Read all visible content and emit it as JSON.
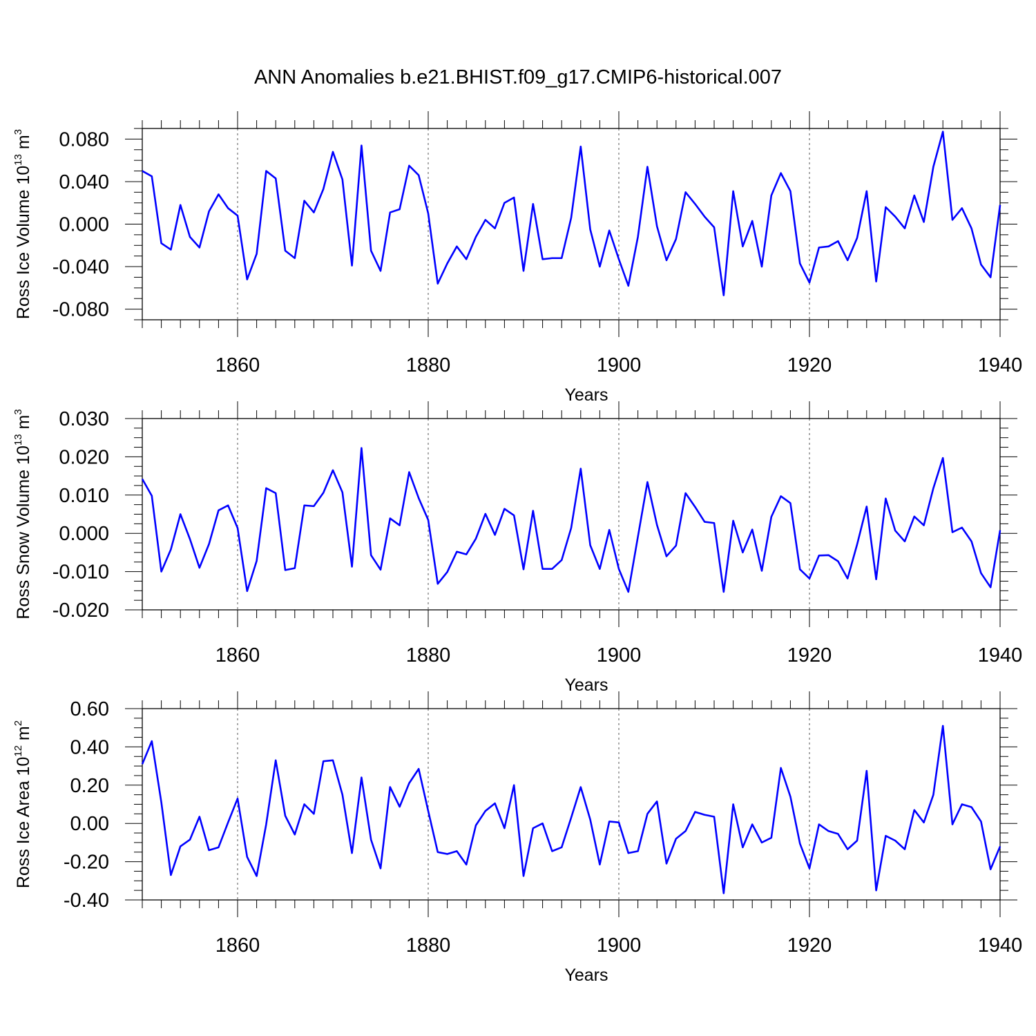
{
  "title": "ANN Anomalies b.e21.BHIST.f09_g17.CMIP6-historical.007",
  "line_color": "#0000ff",
  "chart_data": [
    {
      "type": "line",
      "title": "",
      "xlabel": "Years",
      "ylabel": {
        "text": "Ross Ice Volume 10",
        "exp": "13",
        "unit": " m",
        "unit_exp": "3"
      },
      "xlim": [
        1850,
        1940
      ],
      "ylim": [
        -0.09,
        0.09
      ],
      "x_ticks": [
        1860,
        1880,
        1900,
        1920,
        1940
      ],
      "y_ticks": [
        -0.08,
        -0.04,
        0.0,
        0.04,
        0.08
      ],
      "y_tick_labels": [
        "-0.080",
        "-0.040",
        "0.000",
        "0.040",
        "0.080"
      ],
      "grid": "vertical-dashed",
      "x": [
        1850,
        1851,
        1852,
        1853,
        1854,
        1855,
        1856,
        1857,
        1858,
        1859,
        1860,
        1861,
        1862,
        1863,
        1864,
        1865,
        1866,
        1867,
        1868,
        1869,
        1870,
        1871,
        1872,
        1873,
        1874,
        1875,
        1876,
        1877,
        1878,
        1879,
        1880,
        1881,
        1882,
        1883,
        1884,
        1885,
        1886,
        1887,
        1888,
        1889,
        1890,
        1891,
        1892,
        1893,
        1894,
        1895,
        1896,
        1897,
        1898,
        1899,
        1900,
        1901,
        1902,
        1903,
        1904,
        1905,
        1906,
        1907,
        1908,
        1909,
        1910,
        1911,
        1912,
        1913,
        1914,
        1915,
        1916,
        1917,
        1918,
        1919,
        1920,
        1921,
        1922,
        1923,
        1924,
        1925,
        1926,
        1927,
        1928,
        1929,
        1930,
        1931,
        1932,
        1933,
        1934,
        1935,
        1936,
        1937,
        1938,
        1939,
        1940
      ],
      "values": [
        0.05,
        0.045,
        -0.018,
        -0.024,
        0.018,
        -0.012,
        -0.022,
        0.012,
        0.028,
        0.015,
        0.008,
        -0.052,
        -0.028,
        0.05,
        0.043,
        -0.025,
        -0.032,
        0.022,
        0.011,
        0.033,
        0.068,
        0.042,
        -0.039,
        0.074,
        -0.025,
        -0.044,
        0.011,
        0.014,
        0.055,
        0.046,
        0.01,
        -0.056,
        -0.037,
        -0.021,
        -0.033,
        -0.012,
        0.004,
        -0.004,
        0.02,
        0.025,
        -0.044,
        0.019,
        -0.033,
        -0.032,
        -0.032,
        0.006,
        0.073,
        -0.005,
        -0.04,
        -0.006,
        -0.033,
        -0.058,
        -0.012,
        0.054,
        -0.002,
        -0.034,
        -0.014,
        0.03,
        0.019,
        0.007,
        -0.003,
        -0.067,
        0.031,
        -0.021,
        0.003,
        -0.04,
        0.027,
        0.048,
        0.031,
        -0.037,
        -0.055,
        -0.022,
        -0.021,
        -0.016,
        -0.034,
        -0.013,
        0.031,
        -0.054,
        0.016,
        0.007,
        -0.004,
        0.027,
        0.002,
        0.054,
        0.087,
        0.004,
        0.015,
        -0.004,
        -0.038,
        -0.05,
        0.018
      ]
    },
    {
      "type": "line",
      "title": "",
      "xlabel": "Years",
      "ylabel": {
        "text": "Ross Snow Volume 10",
        "exp": "13",
        "unit": " m",
        "unit_exp": "3"
      },
      "xlim": [
        1850,
        1940
      ],
      "ylim": [
        -0.02,
        0.03
      ],
      "x_ticks": [
        1860,
        1880,
        1900,
        1920,
        1940
      ],
      "y_ticks": [
        -0.02,
        -0.01,
        0.0,
        0.01,
        0.02,
        0.03
      ],
      "y_tick_labels": [
        "-0.020",
        "-0.010",
        "0.000",
        "0.010",
        "0.020",
        "0.030"
      ],
      "grid": "vertical-dashed",
      "x": [
        1850,
        1851,
        1852,
        1853,
        1854,
        1855,
        1856,
        1857,
        1858,
        1859,
        1860,
        1861,
        1862,
        1863,
        1864,
        1865,
        1866,
        1867,
        1868,
        1869,
        1870,
        1871,
        1872,
        1873,
        1874,
        1875,
        1876,
        1877,
        1878,
        1879,
        1880,
        1881,
        1882,
        1883,
        1884,
        1885,
        1886,
        1887,
        1888,
        1889,
        1890,
        1891,
        1892,
        1893,
        1894,
        1895,
        1896,
        1897,
        1898,
        1899,
        1900,
        1901,
        1902,
        1903,
        1904,
        1905,
        1906,
        1907,
        1908,
        1909,
        1910,
        1911,
        1912,
        1913,
        1914,
        1915,
        1916,
        1917,
        1918,
        1919,
        1920,
        1921,
        1922,
        1923,
        1924,
        1925,
        1926,
        1927,
        1928,
        1929,
        1930,
        1931,
        1932,
        1933,
        1934,
        1935,
        1936,
        1937,
        1938,
        1939,
        1940
      ],
      "values": [
        0.0142,
        0.0098,
        -0.01,
        -0.0042,
        0.005,
        -0.0015,
        -0.009,
        -0.0028,
        0.006,
        0.0073,
        0.0014,
        -0.0151,
        -0.0072,
        0.0118,
        0.0105,
        -0.0096,
        -0.0091,
        0.0073,
        0.0071,
        0.0106,
        0.0165,
        0.0107,
        -0.0087,
        0.0223,
        -0.0057,
        -0.0095,
        0.0039,
        0.0021,
        0.016,
        0.0092,
        0.0035,
        -0.0132,
        -0.0101,
        -0.0048,
        -0.0055,
        -0.0014,
        0.0051,
        -0.0004,
        0.0064,
        0.0047,
        -0.0094,
        0.0059,
        -0.0093,
        -0.0093,
        -0.007,
        0.0014,
        0.0169,
        -0.0031,
        -0.0093,
        0.0009,
        -0.0093,
        -0.0153,
        -0.0009,
        0.0134,
        0.0022,
        -0.006,
        -0.0032,
        0.0105,
        0.0069,
        0.003,
        0.0027,
        -0.0153,
        0.0033,
        -0.005,
        0.001,
        -0.0098,
        0.0043,
        0.0097,
        0.0079,
        -0.0094,
        -0.0118,
        -0.0058,
        -0.0057,
        -0.0073,
        -0.0118,
        -0.0029,
        0.007,
        -0.012,
        0.0091,
        0.0007,
        -0.0021,
        0.0044,
        0.0021,
        0.0118,
        0.0197,
        0.0003,
        0.0015,
        -0.0021,
        -0.0104,
        -0.0141,
        0.0008
      ]
    },
    {
      "type": "line",
      "title": "",
      "xlabel": "Years",
      "ylabel": {
        "text": "Ross Ice Area 10",
        "exp": "12",
        "unit": " m",
        "unit_exp": "2"
      },
      "xlim": [
        1850,
        1940
      ],
      "ylim": [
        -0.4,
        0.6
      ],
      "x_ticks": [
        1860,
        1880,
        1900,
        1920,
        1940
      ],
      "y_ticks": [
        -0.4,
        -0.2,
        0.0,
        0.2,
        0.4,
        0.6
      ],
      "y_tick_labels": [
        "-0.40",
        "-0.20",
        "0.00",
        "0.20",
        "0.40",
        "0.60"
      ],
      "grid": "vertical-dashed",
      "x": [
        1850,
        1851,
        1852,
        1853,
        1854,
        1855,
        1856,
        1857,
        1858,
        1859,
        1860,
        1861,
        1862,
        1863,
        1864,
        1865,
        1866,
        1867,
        1868,
        1869,
        1870,
        1871,
        1872,
        1873,
        1874,
        1875,
        1876,
        1877,
        1878,
        1879,
        1880,
        1881,
        1882,
        1883,
        1884,
        1885,
        1886,
        1887,
        1888,
        1889,
        1890,
        1891,
        1892,
        1893,
        1894,
        1895,
        1896,
        1897,
        1898,
        1899,
        1900,
        1901,
        1902,
        1903,
        1904,
        1905,
        1906,
        1907,
        1908,
        1909,
        1910,
        1911,
        1912,
        1913,
        1914,
        1915,
        1916,
        1917,
        1918,
        1919,
        1920,
        1921,
        1922,
        1923,
        1924,
        1925,
        1926,
        1927,
        1928,
        1929,
        1930,
        1931,
        1932,
        1933,
        1934,
        1935,
        1936,
        1937,
        1938,
        1939,
        1940
      ],
      "values": [
        0.31,
        0.43,
        0.11,
        -0.27,
        -0.12,
        -0.085,
        0.035,
        -0.14,
        -0.125,
        0.005,
        0.13,
        -0.175,
        -0.275,
        -0.005,
        0.33,
        0.04,
        -0.058,
        0.1,
        0.05,
        0.325,
        0.33,
        0.15,
        -0.155,
        0.24,
        -0.085,
        -0.235,
        0.19,
        0.087,
        0.21,
        0.285,
        0.065,
        -0.15,
        -0.16,
        -0.145,
        -0.215,
        -0.01,
        0.065,
        0.105,
        -0.025,
        0.2,
        -0.275,
        -0.025,
        0.0,
        -0.145,
        -0.125,
        0.03,
        0.19,
        0.02,
        -0.215,
        0.01,
        0.005,
        -0.155,
        -0.145,
        0.05,
        0.115,
        -0.21,
        -0.08,
        -0.04,
        0.06,
        0.045,
        0.035,
        -0.365,
        0.1,
        -0.125,
        -0.005,
        -0.1,
        -0.075,
        0.29,
        0.14,
        -0.105,
        -0.235,
        -0.005,
        -0.04,
        -0.055,
        -0.135,
        -0.09,
        0.275,
        -0.35,
        -0.065,
        -0.09,
        -0.135,
        0.07,
        0.005,
        0.15,
        0.51,
        -0.005,
        0.1,
        0.085,
        0.01,
        -0.24,
        -0.12
      ]
    }
  ]
}
